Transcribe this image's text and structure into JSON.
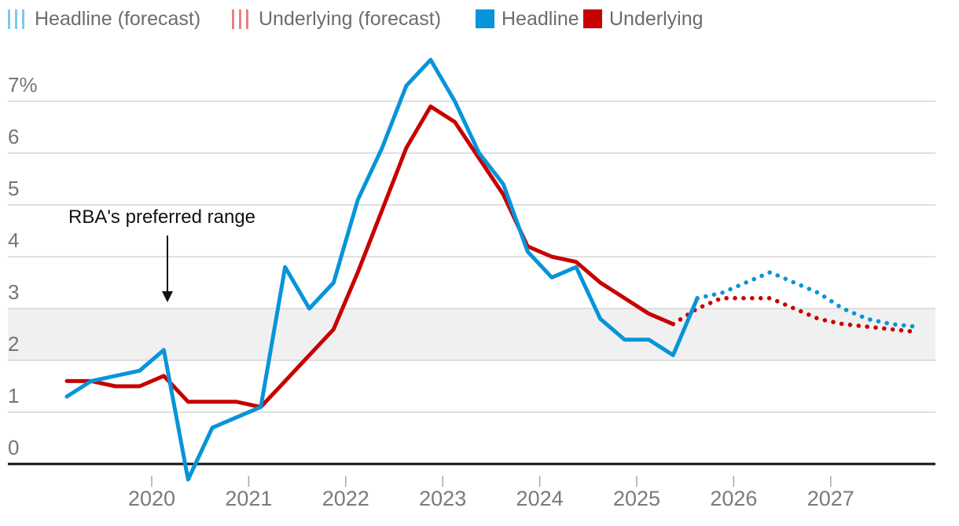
{
  "legend": {
    "items": [
      {
        "label": "Headline (forecast)",
        "swatch": "dashes",
        "color": "#82c7ea"
      },
      {
        "label": "Underlying (forecast)",
        "swatch": "dashes",
        "color": "#e78181"
      },
      {
        "label": "Headline",
        "swatch": "square",
        "color": "#0894d8"
      },
      {
        "label": "Underlying",
        "swatch": "square",
        "color": "#c70000"
      }
    ]
  },
  "annotation": {
    "text": "RBA's preferred range"
  },
  "colors": {
    "headline": "#0894d8",
    "underlying": "#c70000",
    "grid": "#d5d5d5",
    "band": "#f0f0f0",
    "axis": "#121212",
    "tick": "#a8a8a8"
  },
  "chart_data": {
    "type": "line",
    "title": "",
    "ylabel": "",
    "xlabel": "",
    "unit": "percent",
    "ylim": [
      -0.5,
      7.9
    ],
    "grid": true,
    "legend_position": "top",
    "band": {
      "from": 2,
      "to": 3,
      "label": "RBA's preferred range"
    },
    "y_axis": {
      "ticks": [
        {
          "value": 7,
          "label": "7%"
        },
        {
          "value": 6,
          "label": "6"
        },
        {
          "value": 5,
          "label": "5"
        },
        {
          "value": 4,
          "label": "4"
        },
        {
          "value": 3,
          "label": "3"
        },
        {
          "value": 2,
          "label": "2"
        },
        {
          "value": 1,
          "label": "1"
        },
        {
          "value": 0,
          "label": "0"
        }
      ]
    },
    "x_axis": {
      "ticks": [
        {
          "value": 2020,
          "label": "2020"
        },
        {
          "value": 2021,
          "label": "2021"
        },
        {
          "value": 2022,
          "label": "2022"
        },
        {
          "value": 2023,
          "label": "2023"
        },
        {
          "value": 2024,
          "label": "2024"
        },
        {
          "value": 2025,
          "label": "2025"
        },
        {
          "value": 2026,
          "label": "2026"
        },
        {
          "value": 2027,
          "label": "2027"
        }
      ]
    },
    "series": [
      {
        "name": "Underlying",
        "style": "solid",
        "color": "#c70000",
        "x": [
          2019.125,
          2019.375,
          2019.625,
          2019.875,
          2020.125,
          2020.375,
          2020.625,
          2020.875,
          2021.125,
          2021.375,
          2021.625,
          2021.875,
          2022.125,
          2022.375,
          2022.625,
          2022.875,
          2023.125,
          2023.375,
          2023.625,
          2023.875,
          2024.125,
          2024.375,
          2024.625,
          2024.875,
          2025.125,
          2025.375
        ],
        "y": [
          1.6,
          1.6,
          1.5,
          1.5,
          1.7,
          1.2,
          1.2,
          1.2,
          1.1,
          1.6,
          2.1,
          2.6,
          3.7,
          4.9,
          6.1,
          6.9,
          6.6,
          5.9,
          5.2,
          4.2,
          4.0,
          3.9,
          3.5,
          3.2,
          2.9,
          2.7
        ]
      },
      {
        "name": "Underlying (forecast)",
        "style": "dotted",
        "color": "#c70000",
        "x": [
          2025.375,
          2025.625,
          2025.875,
          2026.125,
          2026.375,
          2026.625,
          2026.875,
          2027.125,
          2027.375,
          2027.625,
          2027.875
        ],
        "y": [
          2.7,
          3.0,
          3.2,
          3.2,
          3.2,
          3.0,
          2.8,
          2.7,
          2.65,
          2.6,
          2.55
        ]
      },
      {
        "name": "Headline",
        "style": "solid",
        "color": "#0894d8",
        "x": [
          2019.125,
          2019.375,
          2019.625,
          2019.875,
          2020.125,
          2020.375,
          2020.625,
          2020.875,
          2021.125,
          2021.375,
          2021.625,
          2021.875,
          2022.125,
          2022.375,
          2022.625,
          2022.875,
          2023.125,
          2023.375,
          2023.625,
          2023.875,
          2024.125,
          2024.375,
          2024.625,
          2024.875,
          2025.125,
          2025.375,
          2025.625
        ],
        "y": [
          1.3,
          1.6,
          1.7,
          1.8,
          2.2,
          -0.3,
          0.7,
          0.9,
          1.1,
          3.8,
          3.0,
          3.5,
          5.1,
          6.1,
          7.3,
          7.8,
          7.0,
          6.0,
          5.4,
          4.1,
          3.6,
          3.8,
          2.8,
          2.4,
          2.4,
          2.1,
          3.2
        ]
      },
      {
        "name": "Headline (forecast)",
        "style": "dotted",
        "color": "#0894d8",
        "x": [
          2025.625,
          2025.875,
          2026.125,
          2026.375,
          2026.625,
          2026.875,
          2027.125,
          2027.375,
          2027.625,
          2027.875
        ],
        "y": [
          3.2,
          3.3,
          3.5,
          3.7,
          3.5,
          3.3,
          3.0,
          2.8,
          2.7,
          2.65
        ]
      }
    ]
  }
}
